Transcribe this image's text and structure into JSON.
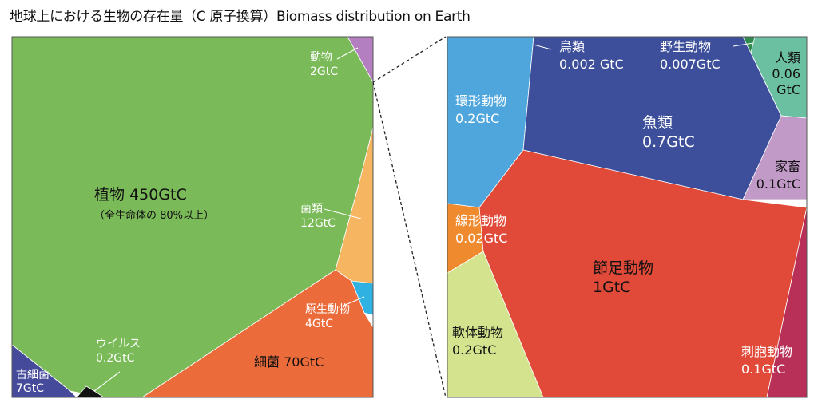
{
  "title": "地球上における生物の存在量（C 原子換算）Biomass distribution on Earth",
  "chart_data": {
    "type": "voronoi-treemap",
    "unit": "GtC",
    "title": "地球上における生物の存在量（C 原子換算）Biomass distribution on Earth",
    "panels": [
      {
        "name": "",
        "cells": [
          {
            "id": "plants",
            "name": "植物",
            "value": 450,
            "value_label": "450GtC",
            "note": "（全生命体の 80%以上）",
            "color": "#7aba58"
          },
          {
            "id": "animals",
            "name": "動物",
            "value": 2,
            "value_label": "2GtC",
            "color": "#b47fc0"
          },
          {
            "id": "fungi",
            "name": "菌類",
            "value": 12,
            "value_label": "12GtC",
            "color": "#f5b561"
          },
          {
            "id": "protists",
            "name": "原生動物",
            "value": 4,
            "value_label": "4GtC",
            "color": "#2fb2e2"
          },
          {
            "id": "bacteria",
            "name": "細菌",
            "value": 70,
            "value_label": "70GtC",
            "color": "#ec6b3b"
          },
          {
            "id": "archaea",
            "name": "古細菌",
            "value": 7,
            "value_label": "7GtC",
            "color": "#454a9a"
          },
          {
            "id": "viruses",
            "name": "ウイルス",
            "value": 0.2,
            "value_label": "0.2GtC",
            "color": "#111111"
          }
        ]
      },
      {
        "name": "",
        "cells": [
          {
            "id": "birds",
            "name": "鳥類",
            "value": 0.002,
            "value_label": "0.002 GtC",
            "color": "#f2b12c"
          },
          {
            "id": "wild-mammals",
            "name": "野生動物",
            "value": 0.007,
            "value_label": "0.007GtC",
            "color": "#2f8a4e"
          },
          {
            "id": "humans",
            "name": "人類",
            "value": 0.06,
            "value_label": "0.06 GtC",
            "color": "#6cc0a2"
          },
          {
            "id": "annelids",
            "name": "環形動物",
            "value": 0.2,
            "value_label": "0.2GtC",
            "color": "#4ea6dc"
          },
          {
            "id": "fish",
            "name": "魚類",
            "value": 0.7,
            "value_label": "0.7GtC",
            "color": "#3d4f9b"
          },
          {
            "id": "livestock",
            "name": "家畜",
            "value": 0.1,
            "value_label": "0.1GtC",
            "color": "#c19ac7"
          },
          {
            "id": "nematodes",
            "name": "線形動物",
            "value": 0.02,
            "value_label": "0.02GtC",
            "color": "#f08a2e"
          },
          {
            "id": "arthropods",
            "name": "節足動物",
            "value": 1,
            "value_label": "1GtC",
            "color": "#e14938"
          },
          {
            "id": "molluscs",
            "name": "軟体動物",
            "value": 0.2,
            "value_label": "0.2GtC",
            "color": "#d3e38e"
          },
          {
            "id": "cnidarians",
            "name": "刺胞動物",
            "value": 0.1,
            "value_label": "0.1GtC",
            "color": "#b83058"
          }
        ]
      }
    ]
  }
}
